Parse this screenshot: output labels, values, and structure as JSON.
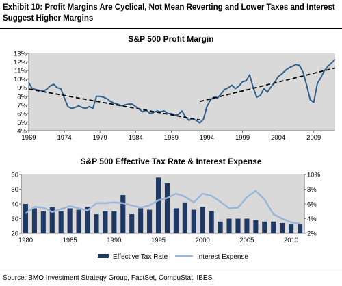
{
  "exhibit_title": "Exhibit 10: Profit Margins Are Cyclical, Not Mean Reverting and Lower Taxes and Interest Suggest Higher Margins",
  "source": "Source: BMO Investment Strategy Group, FactSet, CompuStat, IBES.",
  "chart_data": [
    {
      "type": "line",
      "title": "S&P 500 Profit Margin",
      "xlabel": "",
      "ylabel": "",
      "xlim": [
        1969,
        2012
      ],
      "ylim": [
        4,
        13
      ],
      "x_ticks": [
        "1969",
        "1974",
        "1979",
        "1984",
        "1989",
        "1994",
        "1999",
        "2004",
        "2009"
      ],
      "y_ticks": [
        "4%",
        "5%",
        "6%",
        "7%",
        "8%",
        "9%",
        "10%",
        "11%",
        "12%",
        "13%"
      ],
      "plot_background": "#d9d9d9",
      "line_color": "#2f5f8a",
      "series": [
        {
          "x": [
            1969,
            1969.5,
            1970,
            1970.5,
            1971,
            1971.5,
            1972,
            1972.5,
            1973,
            1973.5,
            1974,
            1974.5,
            1975,
            1975.5,
            1976,
            1976.5,
            1977,
            1977.5,
            1978,
            1978.5,
            1979,
            1979.5,
            1980,
            1980.5,
            1981,
            1981.5,
            1982,
            1982.5,
            1983,
            1983.5,
            1984,
            1984.5,
            1985,
            1985.5,
            1986,
            1986.5,
            1987,
            1987.5,
            1988,
            1988.5,
            1989,
            1989.5,
            1990,
            1990.5,
            1991,
            1991.5,
            1992,
            1992.5,
            1993,
            1993.5,
            1994,
            1994.5,
            1995,
            1995.5,
            1996,
            1996.5,
            1997,
            1997.5,
            1998,
            1998.5,
            1999,
            1999.5,
            2000,
            2000.5,
            2001,
            2001.5,
            2002,
            2002.5,
            2003,
            2003.5,
            2004,
            2004.5,
            2005,
            2005.5,
            2006,
            2006.5,
            2007,
            2007.5,
            2008,
            2008.5,
            2009,
            2009.5,
            2010,
            2010.5,
            2011,
            2011.5,
            2012
          ],
          "y": [
            9.6,
            8.9,
            8.8,
            8.7,
            8.6,
            8.8,
            9.2,
            9.4,
            9.0,
            8.9,
            7.8,
            6.8,
            6.6,
            6.7,
            6.9,
            6.7,
            6.6,
            6.8,
            6.6,
            8.0,
            8.0,
            7.9,
            7.7,
            7.4,
            7.2,
            7.1,
            6.9,
            7.0,
            7.1,
            7.1,
            6.8,
            6.5,
            6.2,
            6.4,
            6.0,
            6.1,
            6.3,
            6.2,
            6.3,
            6.0,
            6.0,
            5.8,
            5.9,
            6.3,
            5.6,
            5.2,
            5.4,
            5.2,
            4.9,
            5.3,
            6.8,
            7.6,
            7.9,
            7.8,
            8.3,
            8.8,
            9.0,
            9.3,
            8.9,
            9.2,
            9.7,
            9.8,
            10.5,
            9.0,
            7.9,
            8.1,
            8.9,
            8.5,
            9.1,
            9.6,
            10.3,
            10.6,
            11.0,
            11.3,
            11.5,
            11.7,
            11.6,
            10.8,
            9.3,
            7.6,
            7.3,
            9.5,
            10.2,
            11.0,
            11.5,
            11.9,
            12.3
          ]
        }
      ],
      "trend_lines": [
        {
          "x": [
            1969,
            1993
          ],
          "y": [
            8.85,
            5.25
          ]
        },
        {
          "x": [
            1993,
            2012
          ],
          "y": [
            7.4,
            11.3
          ]
        }
      ]
    },
    {
      "type": "bar",
      "title": "S&P 500 Effective Tax Rate & Interest Expense",
      "xlim": [
        1979.5,
        2011.5
      ],
      "ylim": [
        20,
        60
      ],
      "y2lim": [
        2,
        10
      ],
      "x_ticks": [
        "1980",
        "1985",
        "1990",
        "1995",
        "2000",
        "2005",
        "2010"
      ],
      "y_ticks": [
        "20",
        "30",
        "40",
        "50",
        "60"
      ],
      "y2_ticks": [
        "2%",
        "4%",
        "6%",
        "8%",
        "10%"
      ],
      "legend_position": "bottom",
      "plot_background": "#d9d9d9",
      "series": [
        {
          "name": "Effective Tax Rate",
          "type": "bar",
          "axis": "left",
          "color": "#1f3864",
          "x": [
            1980,
            1981,
            1982,
            1983,
            1984,
            1985,
            1986,
            1987,
            1988,
            1989,
            1990,
            1991,
            1992,
            1993,
            1994,
            1995,
            1996,
            1997,
            1998,
            1999,
            2000,
            2001,
            2002,
            2003,
            2004,
            2005,
            2006,
            2007,
            2008,
            2009,
            2010,
            2011
          ],
          "values": [
            40,
            37,
            35,
            38,
            35,
            37,
            36,
            38,
            33,
            35,
            35,
            46,
            33,
            37,
            36,
            58,
            54,
            37,
            41,
            36,
            38,
            35,
            28,
            30,
            30,
            30,
            29,
            28,
            28,
            27,
            26,
            26
          ]
        },
        {
          "name": "Interest Expense",
          "type": "line",
          "axis": "right",
          "color": "#9ab7d8",
          "x": [
            1980,
            1981,
            1982,
            1983,
            1984,
            1985,
            1986,
            1987,
            1988,
            1989,
            1990,
            1991,
            1992,
            1993,
            1994,
            1995,
            1996,
            1997,
            1998,
            1999,
            2000,
            2001,
            2002,
            2003,
            2004,
            2005,
            2006,
            2007,
            2008,
            2009,
            2010,
            2011
          ],
          "values": [
            4.7,
            5.6,
            5.5,
            4.9,
            5.3,
            5.7,
            5.4,
            5.1,
            6.1,
            6.1,
            6.2,
            6.1,
            5.8,
            5.5,
            5.8,
            6.5,
            6.8,
            7.4,
            7.0,
            6.2,
            7.4,
            7.1,
            6.3,
            5.4,
            5.5,
            6.9,
            7.8,
            6.6,
            4.6,
            4.0,
            3.5,
            3.3
          ]
        }
      ]
    }
  ]
}
